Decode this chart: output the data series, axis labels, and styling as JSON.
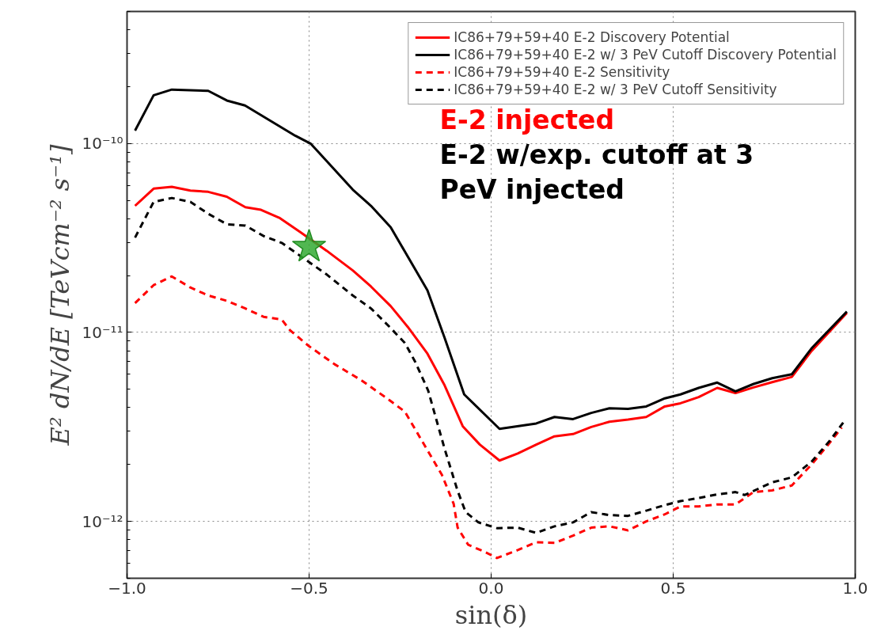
{
  "chart_data": {
    "type": "line",
    "xlabel": "sin(δ)",
    "ylabel": "E² dN/dE [TeVcm⁻² s⁻¹]",
    "log": "y",
    "grid": true,
    "legend": "top right",
    "xlim": [
      -1.0,
      1.0
    ],
    "xticks": [
      {
        "value": -1.0,
        "label": "−1.0"
      },
      {
        "value": -0.5,
        "label": "−0.5"
      },
      {
        "value": 0.0,
        "label": "0.0"
      },
      {
        "value": 0.5,
        "label": "0.5"
      },
      {
        "value": 1.0,
        "label": "1.0"
      }
    ],
    "ylim": [
      5e-13,
      5e-10
    ],
    "yticks": [
      {
        "value": 1e-12,
        "label": "10⁻¹²"
      },
      {
        "value": 1e-11,
        "label": "10⁻¹¹"
      },
      {
        "value": 1e-10,
        "label": "10⁻¹⁰"
      }
    ],
    "annotations": [
      "E-2 injected",
      "E-2 w/exp. cutoff at 3 PeV injected"
    ],
    "series": [
      {
        "name": "IC86+79+59+40 E-2 Discovery Potential",
        "color": "#ff0000",
        "line_style": "solid",
        "x": [
          -0.978,
          -0.927,
          -0.877,
          -0.826,
          -0.777,
          -0.726,
          -0.675,
          -0.632,
          -0.582,
          -0.524,
          -0.452,
          -0.38,
          -0.33,
          -0.276,
          -0.229,
          -0.175,
          -0.128,
          -0.078,
          -0.031,
          0.023,
          0.073,
          0.124,
          0.174,
          0.225,
          0.275,
          0.325,
          0.376,
          0.426,
          0.477,
          0.52,
          0.57,
          0.621,
          0.671,
          0.721,
          0.772,
          0.826,
          0.88,
          0.977
        ],
        "values": [
          4.68e-11,
          5.77e-11,
          5.9e-11,
          5.64e-11,
          5.55e-11,
          5.23e-11,
          4.6e-11,
          4.46e-11,
          4.05e-11,
          3.4e-11,
          2.71e-11,
          2.13e-11,
          1.75e-11,
          1.38e-11,
          1.07e-11,
          7.73e-12,
          5.26e-12,
          3.19e-12,
          2.55e-12,
          2.1e-12,
          2.29e-12,
          2.55e-12,
          2.82e-12,
          2.9e-12,
          3.16e-12,
          3.37e-12,
          3.46e-12,
          3.57e-12,
          4.06e-12,
          4.22e-12,
          4.55e-12,
          5.09e-12,
          4.78e-12,
          5.12e-12,
          5.46e-12,
          5.82e-12,
          7.98e-12,
          1.27e-11
        ]
      },
      {
        "name": "IC86+79+59+40 E-2 w/ 3 PeV Cutoff Discovery Potential",
        "color": "#000000",
        "line_style": "solid",
        "x": [
          -0.978,
          -0.927,
          -0.877,
          -0.777,
          -0.726,
          -0.676,
          -0.538,
          -0.496,
          -0.474,
          -0.38,
          -0.33,
          -0.276,
          -0.175,
          -0.128,
          -0.074,
          0.023,
          0.124,
          0.174,
          0.225,
          0.275,
          0.325,
          0.376,
          0.426,
          0.477,
          0.52,
          0.57,
          0.621,
          0.671,
          0.721,
          0.772,
          0.826,
          0.88,
          0.977
        ],
        "values": [
          1.17e-10,
          1.8e-10,
          1.93e-10,
          1.9e-10,
          1.69e-10,
          1.59e-10,
          1.1e-10,
          1e-10,
          9e-11,
          5.7e-11,
          4.68e-11,
          3.61e-11,
          1.67e-11,
          9.4e-12,
          4.7e-12,
          3.09e-12,
          3.3e-12,
          3.57e-12,
          3.48e-12,
          3.75e-12,
          3.97e-12,
          3.94e-12,
          4.06e-12,
          4.48e-12,
          4.7e-12,
          5.09e-12,
          5.43e-12,
          4.88e-12,
          5.34e-12,
          5.73e-12,
          6.01e-12,
          8.24e-12,
          1.29e-11
        ]
      },
      {
        "name": "IC86+79+59+40 E-2 Sensitivity",
        "color": "#ff0000",
        "line_style": "dashed",
        "x": [
          -0.978,
          -0.927,
          -0.877,
          -0.826,
          -0.777,
          -0.726,
          -0.675,
          -0.625,
          -0.575,
          -0.553,
          -0.502,
          -0.43,
          -0.358,
          -0.286,
          -0.237,
          -0.186,
          -0.135,
          -0.103,
          -0.092,
          -0.063,
          -0.02,
          0.016,
          0.073,
          0.124,
          0.174,
          0.225,
          0.275,
          0.325,
          0.376,
          0.426,
          0.477,
          0.52,
          0.57,
          0.621,
          0.671,
          0.721,
          0.772,
          0.826,
          0.88,
          0.923,
          0.963
        ],
        "values": [
          1.43e-11,
          1.78e-11,
          1.98e-11,
          1.73e-11,
          1.57e-11,
          1.47e-11,
          1.34e-11,
          1.21e-11,
          1.17e-11,
          1.03e-11,
          8.51e-12,
          6.79e-12,
          5.61e-12,
          4.48e-12,
          3.81e-12,
          2.59e-12,
          1.76e-12,
          1.24e-12,
          9.27e-13,
          7.52e-13,
          6.93e-13,
          6.4e-13,
          7.05e-13,
          7.76e-13,
          7.69e-13,
          8.41e-13,
          9.27e-13,
          9.42e-13,
          8.97e-13,
          1e-12,
          1.09e-12,
          1.2e-12,
          1.2e-12,
          1.23e-12,
          1.23e-12,
          1.43e-12,
          1.46e-12,
          1.55e-12,
          2e-12,
          2.51e-12,
          3.14e-12
        ]
      },
      {
        "name": "IC86+79+59+40 E-2 w/ 3 PeV Cutoff Sensitivity",
        "color": "#000000",
        "line_style": "dashed",
        "x": [
          -0.978,
          -0.927,
          -0.877,
          -0.826,
          -0.777,
          -0.726,
          -0.675,
          -0.625,
          -0.575,
          -0.524,
          -0.452,
          -0.38,
          -0.33,
          -0.279,
          -0.237,
          -0.209,
          -0.173,
          -0.128,
          -0.092,
          -0.07,
          -0.035,
          0.016,
          0.073,
          0.124,
          0.174,
          0.225,
          0.275,
          0.325,
          0.376,
          0.426,
          0.477,
          0.52,
          0.57,
          0.621,
          0.671,
          0.696,
          0.721,
          0.772,
          0.826,
          0.88,
          0.93,
          0.973
        ],
        "values": [
          3.18e-11,
          4.91e-11,
          5.15e-11,
          4.91e-11,
          4.25e-11,
          3.74e-11,
          3.68e-11,
          3.24e-11,
          2.98e-11,
          2.54e-11,
          2.03e-11,
          1.57e-11,
          1.34e-11,
          1.07e-11,
          8.8e-12,
          7.02e-12,
          4.93e-12,
          2.43e-12,
          1.45e-12,
          1.12e-12,
          9.88e-13,
          9.21e-13,
          9.27e-13,
          8.69e-13,
          9.42e-13,
          9.88e-13,
          1.12e-12,
          1.08e-12,
          1.07e-12,
          1.14e-12,
          1.22e-12,
          1.28e-12,
          1.33e-12,
          1.39e-12,
          1.43e-12,
          1.38e-12,
          1.45e-12,
          1.61e-12,
          1.71e-12,
          2.07e-12,
          2.67e-12,
          3.46e-12
        ]
      },
      {
        "type": "scatter",
        "marker": "star",
        "color": "#33aa33",
        "x": [
          -0.5
        ],
        "values": [
          2.84e-11
        ]
      }
    ]
  }
}
